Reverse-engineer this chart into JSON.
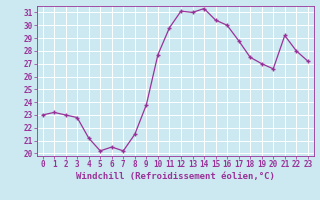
{
  "hours": [
    0,
    1,
    2,
    3,
    4,
    5,
    6,
    7,
    8,
    9,
    10,
    11,
    12,
    13,
    14,
    15,
    16,
    17,
    18,
    19,
    20,
    21,
    22,
    23
  ],
  "values": [
    23,
    23.2,
    23,
    22.8,
    21.2,
    20.2,
    20.5,
    20.2,
    21.5,
    23.8,
    27.7,
    29.8,
    31.1,
    31.0,
    31.3,
    30.4,
    30.0,
    28.8,
    27.5,
    27.0,
    26.6,
    29.2,
    28.0,
    27.2
  ],
  "xlabel": "Windchill (Refroidissement éolien,°C)",
  "ylim": [
    19.8,
    31.5
  ],
  "xlim": [
    -0.5,
    23.5
  ],
  "yticks": [
    20,
    21,
    22,
    23,
    24,
    25,
    26,
    27,
    28,
    29,
    30,
    31
  ],
  "xticks": [
    0,
    1,
    2,
    3,
    4,
    5,
    6,
    7,
    8,
    9,
    10,
    11,
    12,
    13,
    14,
    15,
    16,
    17,
    18,
    19,
    20,
    21,
    22,
    23
  ],
  "line_color": "#993399",
  "marker_color": "#993399",
  "bg_color": "#cce8f0",
  "grid_color": "#ffffff",
  "text_color": "#993399",
  "label_fontsize": 6.5,
  "tick_fontsize": 5.5,
  "marker_size": 3.0,
  "line_width": 0.9
}
